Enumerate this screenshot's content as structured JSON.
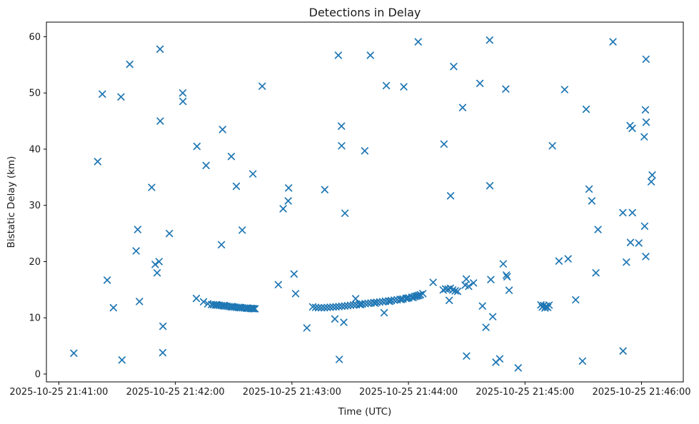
{
  "figure": {
    "background": "#ffffff",
    "axes_edge_color": "#000000",
    "text_color": "#1a1a1a"
  },
  "chart_data": {
    "type": "scatter",
    "title": "Detections in Delay",
    "xlabel": "Time (UTC)",
    "ylabel": "Bistatic Delay (km)",
    "grid": false,
    "legend": null,
    "marker": {
      "style": "x",
      "color": "#1f77b4",
      "size": 9,
      "stroke_width": 1.7
    },
    "x_axis": {
      "unit": "seconds after 2025-10-25 21:41:00 UTC",
      "lim": [
        -6.4,
        321.5
      ],
      "ticks": [
        {
          "t": 0,
          "label": "2025-10-25 21:41:00"
        },
        {
          "t": 60,
          "label": "2025-10-25 21:42:00"
        },
        {
          "t": 120,
          "label": "2025-10-25 21:43:00"
        },
        {
          "t": 180,
          "label": "2025-10-25 21:44:00"
        },
        {
          "t": 240,
          "label": "2025-10-25 21:45:00"
        },
        {
          "t": 300,
          "label": "2025-10-25 21:46:00"
        }
      ]
    },
    "y_axis": {
      "lim": [
        -1.4,
        62.6
      ],
      "ticks": [
        0,
        10,
        20,
        30,
        40,
        50,
        60
      ]
    },
    "points": [
      [
        7.7,
        3.7
      ],
      [
        20.0,
        37.8
      ],
      [
        22.4,
        49.8
      ],
      [
        24.9,
        16.7
      ],
      [
        28.1,
        11.8
      ],
      [
        32.0,
        49.3
      ],
      [
        32.5,
        2.5
      ],
      [
        36.5,
        55.1
      ],
      [
        39.8,
        21.9
      ],
      [
        40.6,
        25.7
      ],
      [
        41.5,
        12.9
      ],
      [
        47.8,
        33.2
      ],
      [
        49.6,
        19.5
      ],
      [
        50.6,
        18.0
      ],
      [
        51.6,
        20.0
      ],
      [
        52.1,
        57.8
      ],
      [
        52.2,
        45.0
      ],
      [
        53.5,
        3.8
      ],
      [
        53.6,
        8.5
      ],
      [
        56.9,
        25.0
      ],
      [
        63.8,
        50.0
      ],
      [
        63.9,
        48.5
      ],
      [
        71.1,
        40.5
      ],
      [
        75.8,
        37.1
      ],
      [
        83.7,
        23.0
      ],
      [
        84.3,
        43.5
      ],
      [
        88.8,
        38.7
      ],
      [
        91.4,
        33.4
      ],
      [
        94.4,
        25.6
      ],
      [
        99.9,
        35.6
      ],
      [
        104.7,
        51.2
      ],
      [
        113.0,
        15.9
      ],
      [
        115.5,
        29.4
      ],
      [
        118.1,
        30.8
      ],
      [
        118.3,
        33.1
      ],
      [
        121.1,
        17.8
      ],
      [
        121.9,
        14.3
      ],
      [
        127.7,
        8.2
      ],
      [
        136.9,
        32.8
      ],
      [
        142.1,
        9.8
      ],
      [
        143.9,
        56.7
      ],
      [
        144.4,
        2.6
      ],
      [
        145.5,
        44.1
      ],
      [
        145.6,
        40.6
      ],
      [
        146.7,
        9.2
      ],
      [
        147.3,
        28.6
      ],
      [
        152.8,
        13.4
      ],
      [
        157.5,
        39.7
      ],
      [
        160.4,
        56.7
      ],
      [
        167.5,
        10.9
      ],
      [
        168.6,
        51.3
      ],
      [
        177.6,
        51.1
      ],
      [
        185.0,
        59.1
      ],
      [
        192.7,
        16.3
      ],
      [
        198.3,
        40.9
      ],
      [
        201.0,
        13.1
      ],
      [
        201.7,
        31.7
      ],
      [
        203.3,
        54.7
      ],
      [
        207.9,
        47.4
      ],
      [
        209.2,
        15.8
      ],
      [
        209.8,
        16.9
      ],
      [
        209.9,
        3.2
      ],
      [
        211.0,
        15.6
      ],
      [
        213.5,
        16.2
      ],
      [
        216.8,
        51.7
      ],
      [
        218.1,
        12.1
      ],
      [
        219.9,
        8.3
      ],
      [
        221.8,
        59.4
      ],
      [
        221.9,
        33.5
      ],
      [
        222.4,
        16.8
      ],
      [
        223.4,
        10.2
      ],
      [
        225.0,
        2.1
      ],
      [
        227.0,
        2.7
      ],
      [
        228.8,
        19.6
      ],
      [
        230.1,
        50.7
      ],
      [
        230.4,
        17.6
      ],
      [
        230.8,
        17.3
      ],
      [
        231.8,
        14.9
      ],
      [
        236.5,
        1.1
      ],
      [
        254.1,
        40.6
      ],
      [
        257.5,
        20.1
      ],
      [
        260.4,
        50.6
      ],
      [
        262.2,
        20.5
      ],
      [
        266.1,
        13.2
      ],
      [
        269.6,
        2.3
      ],
      [
        271.5,
        47.1
      ],
      [
        273.0,
        32.9
      ],
      [
        274.4,
        30.8
      ],
      [
        276.5,
        18.0
      ],
      [
        277.6,
        25.7
      ],
      [
        285.3,
        59.1
      ],
      [
        290.4,
        28.7
      ],
      [
        290.5,
        4.1
      ],
      [
        292.2,
        19.9
      ],
      [
        294.1,
        44.2
      ],
      [
        294.3,
        23.4
      ],
      [
        295.2,
        43.7
      ],
      [
        295.3,
        28.7
      ],
      [
        298.6,
        23.3
      ],
      [
        301.4,
        42.2
      ],
      [
        301.6,
        26.3
      ],
      [
        302.0,
        47.0
      ],
      [
        302.2,
        20.9
      ],
      [
        302.3,
        56.0
      ],
      [
        302.4,
        44.8
      ],
      [
        305.0,
        34.2
      ],
      [
        305.5,
        35.4
      ],
      [
        197.9,
        14.95
      ],
      [
        199.1,
        15.15
      ],
      [
        200.4,
        15.1
      ],
      [
        201.6,
        15.25
      ],
      [
        202.8,
        14.95
      ],
      [
        204.1,
        14.8
      ],
      [
        205.3,
        14.7
      ],
      [
        248.2,
        12.3
      ],
      [
        248.9,
        11.9
      ],
      [
        249.6,
        12.2
      ],
      [
        250.3,
        11.75
      ],
      [
        251.0,
        12.1
      ],
      [
        251.7,
        11.85
      ],
      [
        252.4,
        12.25
      ],
      [
        250.7,
        12.0
      ],
      [
        70.8,
        13.45
      ],
      [
        74.5,
        12.85
      ],
      [
        76.7,
        12.5
      ],
      [
        78.6,
        12.36
      ],
      [
        79.6,
        12.33
      ],
      [
        80.6,
        12.29
      ],
      [
        81.6,
        12.26
      ],
      [
        82.6,
        12.22
      ],
      [
        83.6,
        12.18
      ],
      [
        84.6,
        12.14
      ],
      [
        85.6,
        12.1
      ],
      [
        86.6,
        12.06
      ],
      [
        87.6,
        12.01
      ],
      [
        88.6,
        11.97
      ],
      [
        89.6,
        11.93
      ],
      [
        90.6,
        11.9
      ],
      [
        91.6,
        11.86
      ],
      [
        92.6,
        11.83
      ],
      [
        93.6,
        11.8
      ],
      [
        94.6,
        11.77
      ],
      [
        95.6,
        11.74
      ],
      [
        96.6,
        11.72
      ],
      [
        97.6,
        11.69
      ],
      [
        98.6,
        11.67
      ],
      [
        99.6,
        11.64
      ],
      [
        100.3,
        11.62
      ],
      [
        101.0,
        11.61
      ],
      [
        81.1,
        12.32
      ],
      [
        85.1,
        12.17
      ],
      [
        89.1,
        11.99
      ],
      [
        93.1,
        11.86
      ],
      [
        97.1,
        11.73
      ],
      [
        99.1,
        11.66
      ],
      [
        130.7,
        11.95
      ],
      [
        132.2,
        11.85
      ],
      [
        133.7,
        11.8
      ],
      [
        135.2,
        11.78
      ],
      [
        136.7,
        11.8
      ],
      [
        138.2,
        11.84
      ],
      [
        139.7,
        11.88
      ],
      [
        141.2,
        11.92
      ],
      [
        142.7,
        11.96
      ],
      [
        144.2,
        12.0
      ],
      [
        145.7,
        12.05
      ],
      [
        147.2,
        12.1
      ],
      [
        148.7,
        12.16
      ],
      [
        150.2,
        12.22
      ],
      [
        151.7,
        12.28
      ],
      [
        153.2,
        12.34
      ],
      [
        154.7,
        12.4
      ],
      [
        156.2,
        12.46
      ],
      [
        157.7,
        12.52
      ],
      [
        159.2,
        12.58
      ],
      [
        160.7,
        12.64
      ],
      [
        162.2,
        12.7
      ],
      [
        163.7,
        12.76
      ],
      [
        165.2,
        12.82
      ],
      [
        166.7,
        12.88
      ],
      [
        168.2,
        12.94
      ],
      [
        169.7,
        13.0
      ],
      [
        171.2,
        13.07
      ],
      [
        172.7,
        13.14
      ],
      [
        174.2,
        13.21
      ],
      [
        175.7,
        13.28
      ],
      [
        177.2,
        13.36
      ],
      [
        178.7,
        13.45
      ],
      [
        180.2,
        13.55
      ],
      [
        181.7,
        13.66
      ],
      [
        183.2,
        13.78
      ],
      [
        184.7,
        13.92
      ],
      [
        186.2,
        14.1
      ],
      [
        187.4,
        14.3
      ],
      [
        155.4,
        12.35
      ],
      [
        162.9,
        12.6
      ],
      [
        170.4,
        12.92
      ],
      [
        176.4,
        13.25
      ],
      [
        179.4,
        13.5
      ],
      [
        182.4,
        13.62
      ],
      [
        184.0,
        13.85
      ],
      [
        185.4,
        14.0
      ]
    ]
  }
}
